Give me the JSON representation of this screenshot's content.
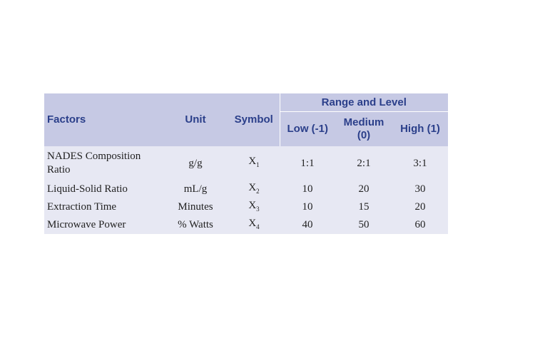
{
  "table": {
    "headers": {
      "factors": "Factors",
      "unit": "Unit",
      "symbol": "Symbol",
      "range_and_level": "Range and Level",
      "low": "Low (-1)",
      "medium_line1": "Medium",
      "medium_line2": "(0)",
      "high": "High (1)"
    },
    "rows": [
      {
        "factor_line1": "NADES Composition",
        "factor_line2": "Ratio",
        "unit": "g/g",
        "symbol": "X",
        "symbol_sub": "1",
        "low": "1:1",
        "medium": "2:1",
        "high": "3:1"
      },
      {
        "factor_line1": "Liquid-Solid Ratio",
        "unit": "mL/g",
        "symbol": "X",
        "symbol_sub": "2",
        "low": "10",
        "medium": "20",
        "high": "30"
      },
      {
        "factor_line1": "Extraction Time",
        "unit": "Minutes",
        "symbol": "X",
        "symbol_sub": "3",
        "low": "10",
        "medium": "15",
        "high": "20"
      },
      {
        "factor_line1": "Microwave Power",
        "unit": "% Watts",
        "symbol": "X",
        "symbol_sub": "4",
        "low": "40",
        "medium": "50",
        "high": "60"
      }
    ]
  },
  "colors": {
    "header_bg": "#c6c9e4",
    "header_text": "#2b3f8a",
    "body_bg": "#e7e8f3"
  }
}
